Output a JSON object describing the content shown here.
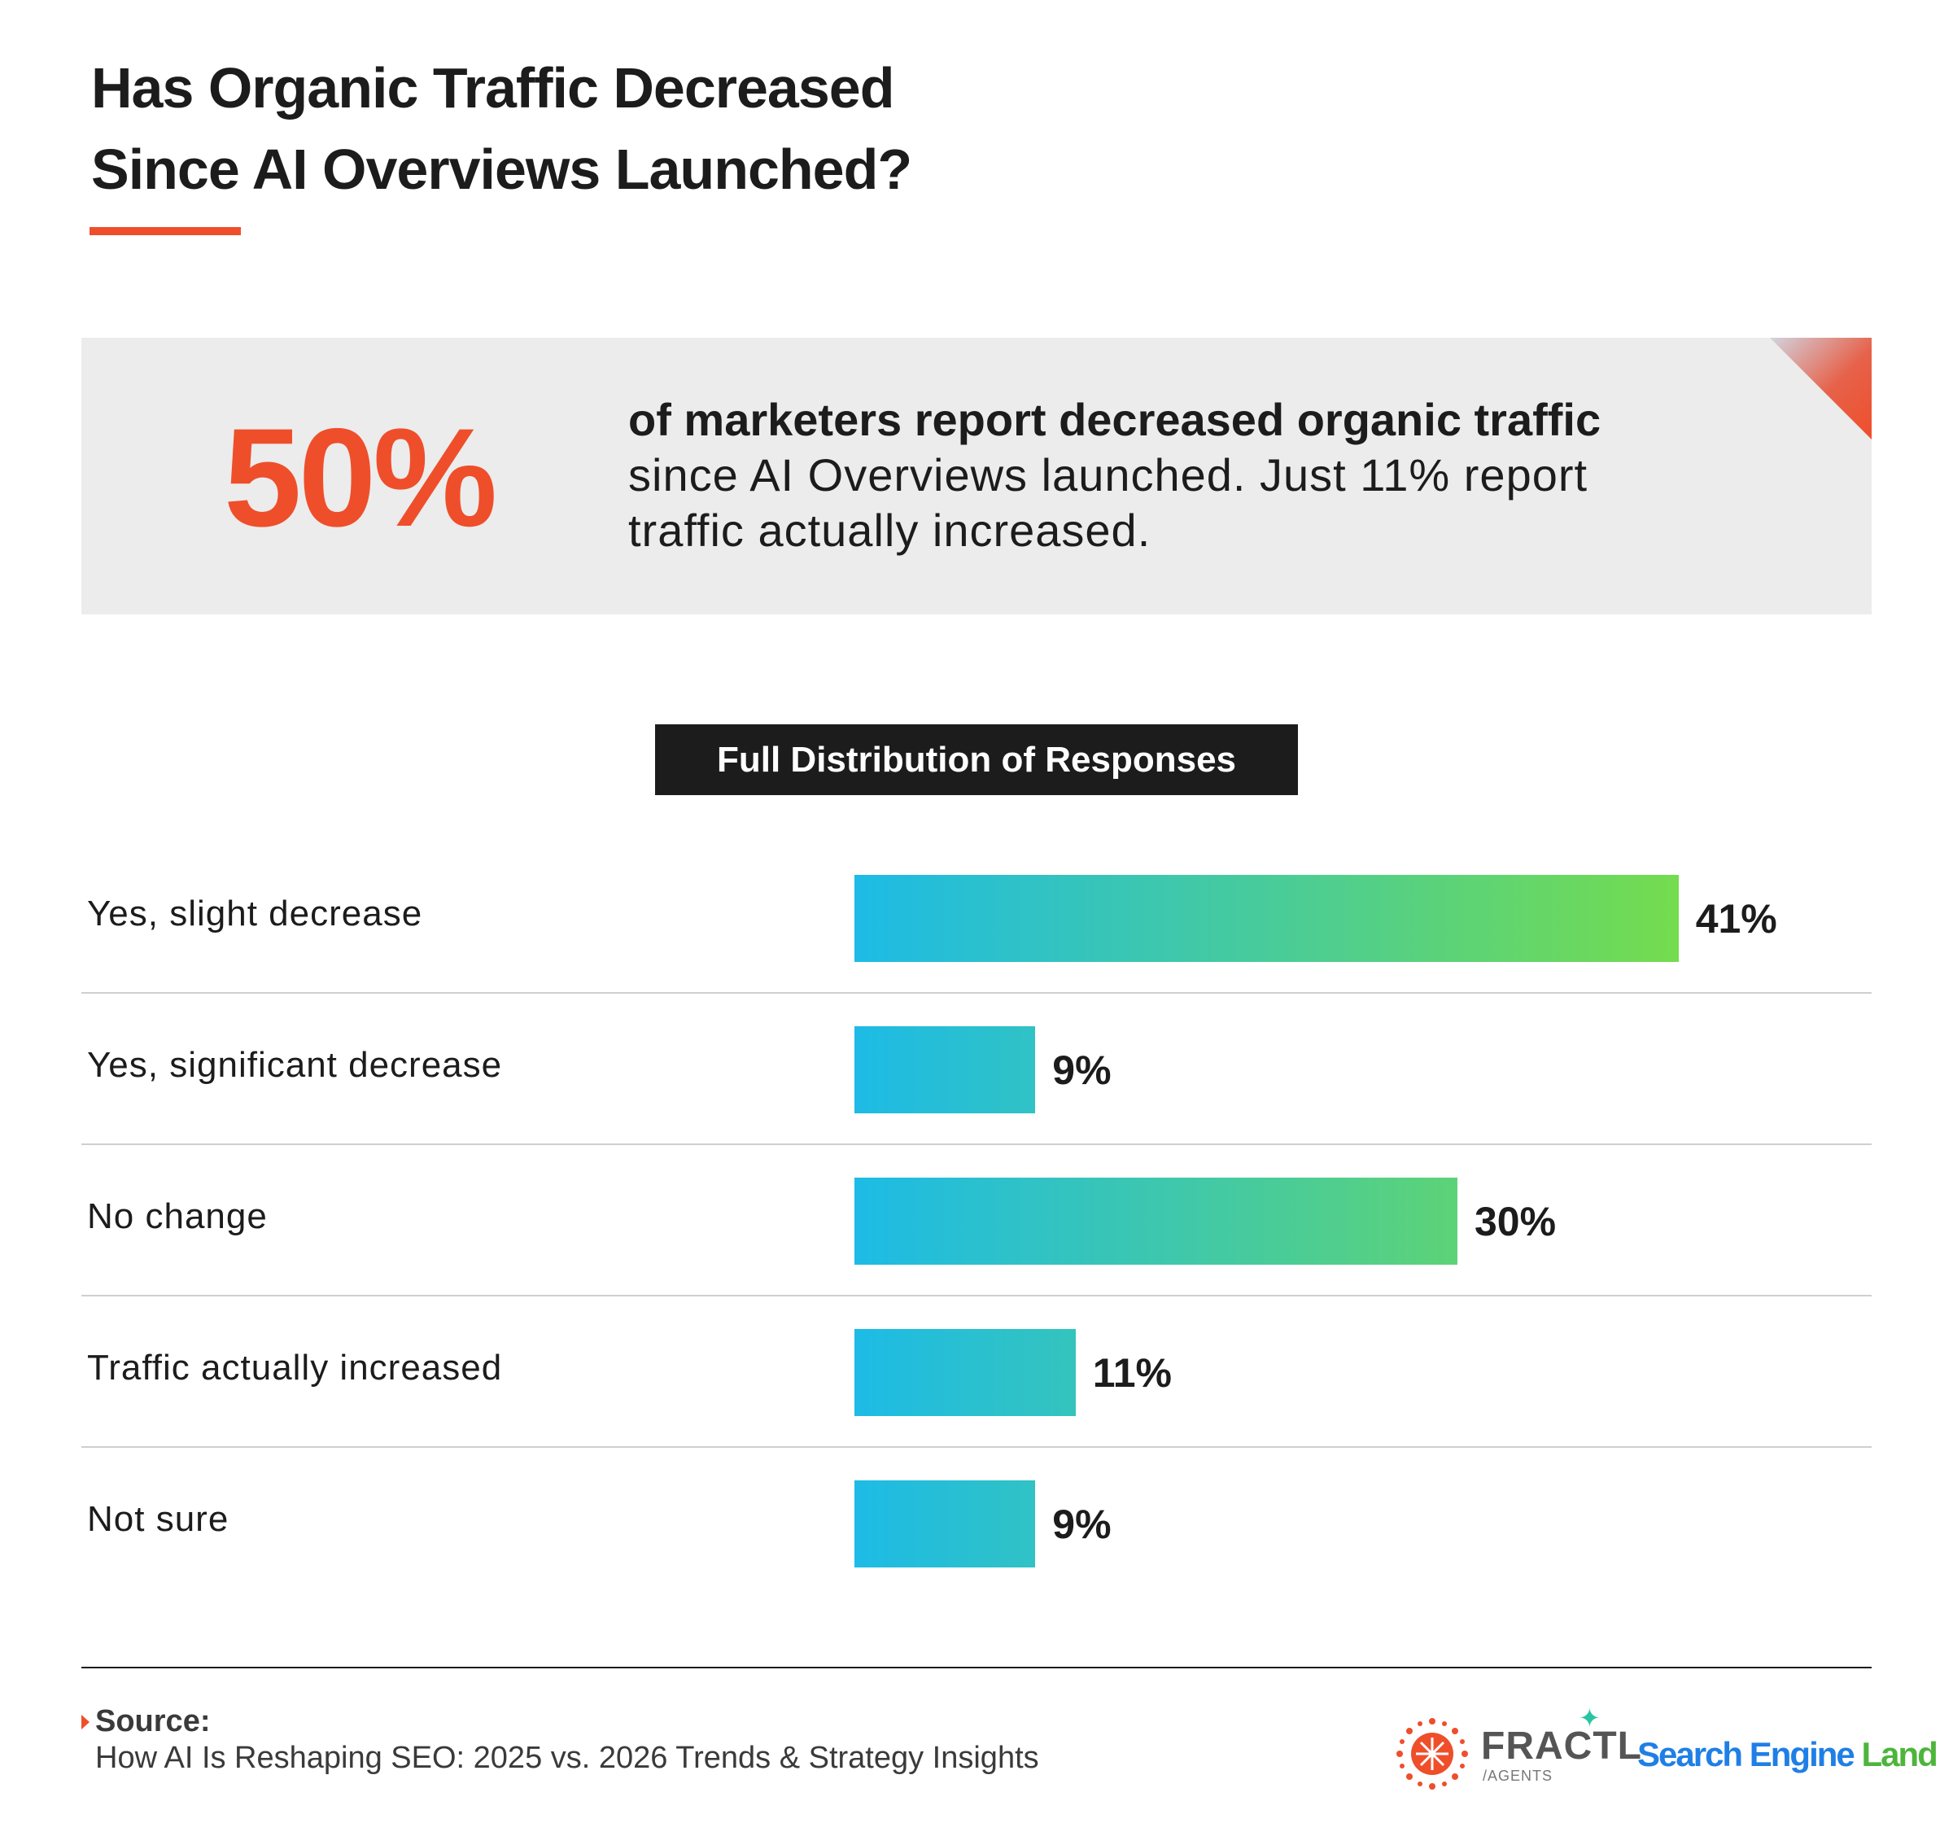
{
  "header": {
    "title_line1": "Has Organic Traffic Decreased",
    "title_line2": "Since AI Overviews Launched?"
  },
  "callout": {
    "big_stat": "50%",
    "strong_text": "of marketers report decreased organic traffic",
    "rest_line1": "since AI Overviews launched. Just 11% report",
    "rest_line2": "traffic actually increased."
  },
  "section_label": "Full Distribution of Responses",
  "chart_data": {
    "type": "bar",
    "orientation": "horizontal",
    "categories": [
      "Yes, slight decrease",
      "Yes, significant decrease",
      "No change",
      "Traffic actually increased",
      "Not sure"
    ],
    "values": [
      41,
      9,
      30,
      11,
      9
    ],
    "value_labels": [
      "41%",
      "9%",
      "30%",
      "11%",
      "9%"
    ],
    "xlim": [
      0,
      100
    ],
    "unit": "%",
    "grid": false,
    "legend": "none",
    "colors": {
      "gradient_start": "#1dbbe6",
      "gradient_end": "#74dc4e"
    }
  },
  "footer": {
    "source_label": "Source:",
    "source_text": "How AI Is Reshaping SEO: 2025 vs. 2026 Trends & Strategy Insights",
    "fractl_name": "FRACTL",
    "fractl_sub": "/AGENTS",
    "sel_part1": "Search Engine ",
    "sel_part2": "Land"
  },
  "colors": {
    "accent": "#ef4e2b",
    "dark": "#1c1c1c",
    "callout_bg": "#ececec"
  }
}
